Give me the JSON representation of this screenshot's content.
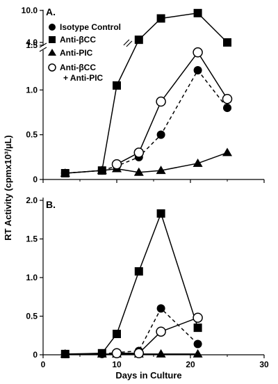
{
  "figure": {
    "ylabel": "RT Activity (cpmx10³/µL)",
    "xlabel": "Days in Culture"
  },
  "legend": [
    {
      "label": "Isotype Control",
      "marker": "filled-circle"
    },
    {
      "label": "Anti-βCC",
      "marker": "filled-square"
    },
    {
      "label": "Anti-PIC",
      "marker": "filled-triangle"
    },
    {
      "label": "Anti-βCC",
      "label2": "+ Anti-PIC",
      "marker": "open-circle"
    }
  ],
  "chart_data": [
    {
      "panel": "A.",
      "type": "line",
      "xlim": [
        0,
        30
      ],
      "x_ticks": [],
      "y_ticks_lower": [
        "0",
        "0.5",
        "1.0",
        "1.5"
      ],
      "y_ticks_upper": [
        "4.0",
        "10.0"
      ],
      "y_break": {
        "lower_range": [
          0,
          1.5
        ],
        "upper_range": [
          4.0,
          10.0
        ]
      },
      "series": [
        {
          "name": "Isotype Control",
          "marker": "filled-circle",
          "line": "dashed",
          "x": [
            3,
            8,
            10,
            13,
            16,
            21,
            25
          ],
          "y": [
            0.07,
            0.1,
            0.15,
            0.25,
            0.5,
            1.22,
            0.8
          ]
        },
        {
          "name": "Anti-βCC",
          "marker": "filled-square",
          "line": "solid",
          "x": [
            3,
            8,
            10,
            13,
            16,
            21,
            25
          ],
          "y": [
            0.07,
            0.1,
            1.05,
            4.5,
            8.5,
            9.5,
            4.0
          ]
        },
        {
          "name": "Anti-PIC",
          "marker": "filled-triangle",
          "line": "solid",
          "x": [
            3,
            8,
            10,
            13,
            16,
            21,
            25
          ],
          "y": [
            0.07,
            0.1,
            0.12,
            0.08,
            0.1,
            0.18,
            0.3
          ]
        },
        {
          "name": "Anti-βCC + Anti-PIC",
          "marker": "open-circle",
          "line": "solid",
          "x": [
            10,
            13,
            16,
            21,
            25
          ],
          "y": [
            0.17,
            0.3,
            0.87,
            1.42,
            0.9
          ]
        }
      ]
    },
    {
      "panel": "B.",
      "type": "line",
      "xlim": [
        0,
        30
      ],
      "ylim": [
        0,
        2.0
      ],
      "x_ticks": [
        "0",
        "10",
        "20",
        "30"
      ],
      "y_ticks": [
        "0",
        "0.5",
        "1.0",
        "1.5",
        "2.0"
      ],
      "series": [
        {
          "name": "Isotype Control",
          "marker": "filled-circle",
          "line": "dashed",
          "x": [
            3,
            8,
            10,
            13,
            16,
            21
          ],
          "y": [
            0.01,
            0.01,
            0.03,
            0.05,
            0.6,
            0.14
          ]
        },
        {
          "name": "Anti-βCC",
          "marker": "filled-square",
          "line": "solid",
          "x": [
            3,
            8,
            10,
            13,
            16,
            21
          ],
          "y": [
            0.01,
            0.02,
            0.27,
            1.08,
            1.83,
            0.35
          ]
        },
        {
          "name": "Anti-PIC",
          "marker": "filled-triangle",
          "line": "solid",
          "x": [
            3,
            8,
            10,
            13,
            16,
            21
          ],
          "y": [
            0.01,
            0.01,
            0.01,
            0.01,
            0.01,
            0.01
          ]
        },
        {
          "name": "Anti-βCC + Anti-PIC",
          "marker": "open-circle",
          "line": "solid",
          "x": [
            10,
            13,
            16,
            21
          ],
          "y": [
            0.02,
            0.02,
            0.3,
            0.48
          ]
        }
      ]
    }
  ]
}
